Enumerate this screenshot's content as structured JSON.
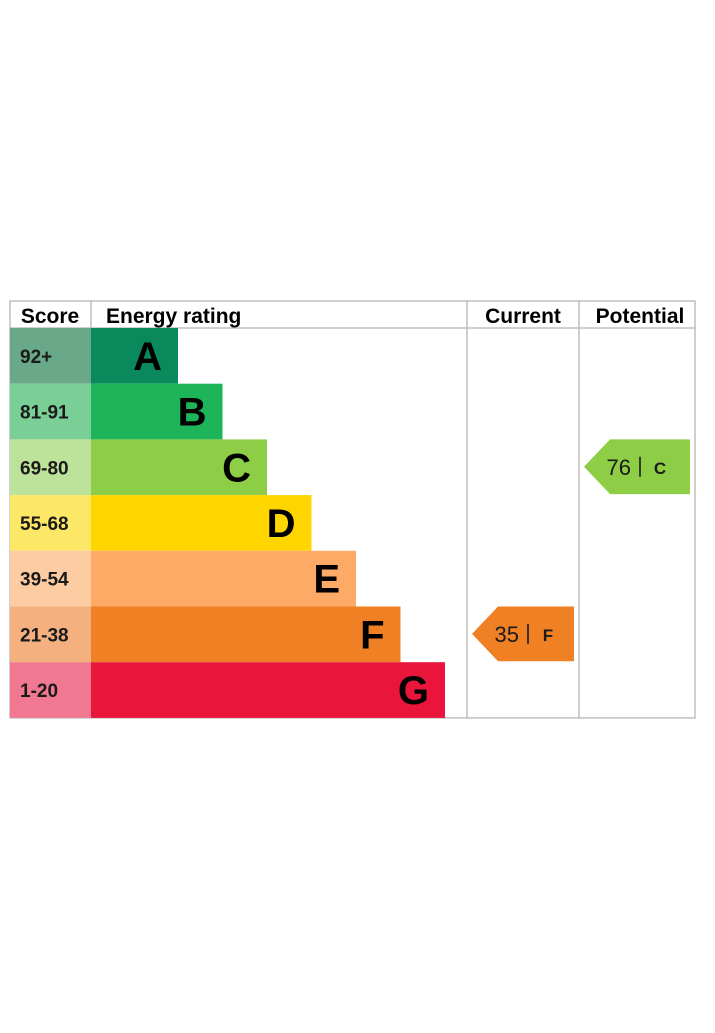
{
  "chart_data": {
    "type": "bar",
    "columns": {
      "score": "Score",
      "energy_rating": "Energy rating",
      "current": "Current",
      "potential": "Potential"
    },
    "bands": [
      {
        "letter": "A",
        "range": "92+",
        "color": "#0a8a5c",
        "score_bg": "#6aa88a"
      },
      {
        "letter": "B",
        "range": "81-91",
        "color": "#1db45a",
        "score_bg": "#79cf95"
      },
      {
        "letter": "C",
        "range": "69-80",
        "color": "#8dce46",
        "score_bg": "#bde299"
      },
      {
        "letter": "D",
        "range": "55-68",
        "color": "#ffd500",
        "score_bg": "#fde766"
      },
      {
        "letter": "E",
        "range": "39-54",
        "color": "#fcaa65",
        "score_bg": "#fdcca3"
      },
      {
        "letter": "F",
        "range": "21-38",
        "color": "#ef8023",
        "score_bg": "#f4b17f"
      },
      {
        "letter": "G",
        "range": "1-20",
        "color": "#e9153b",
        "score_bg": "#f07891"
      }
    ],
    "current": {
      "score": "35",
      "letter": "F",
      "color": "#ef8023"
    },
    "potential": {
      "score": "76",
      "letter": "C",
      "color": "#8dce46"
    }
  }
}
